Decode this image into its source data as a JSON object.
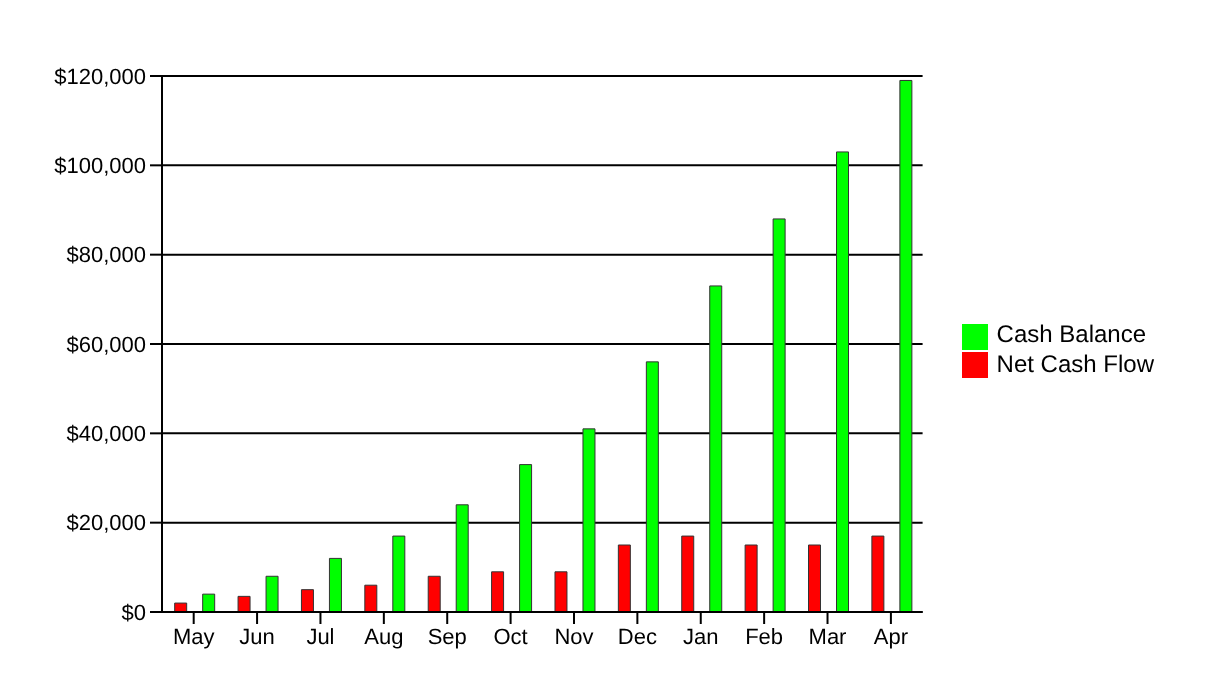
{
  "chart_data": {
    "type": "bar",
    "categories": [
      "May",
      "Jun",
      "Jul",
      "Aug",
      "Sep",
      "Oct",
      "Nov",
      "Dec",
      "Jan",
      "Feb",
      "Mar",
      "Apr"
    ],
    "series": [
      {
        "name": "Net Cash Flow",
        "color": "#ff0000",
        "values": [
          2000,
          3500,
          5000,
          6000,
          8000,
          9000,
          9000,
          15000,
          17000,
          15000,
          15000,
          17000
        ]
      },
      {
        "name": "Cash Balance",
        "color": "#00ff00",
        "values": [
          4000,
          8000,
          12000,
          17000,
          24000,
          33000,
          41000,
          56000,
          73000,
          88000,
          103000,
          119000
        ]
      }
    ],
    "ylim": [
      0,
      120000
    ],
    "yticks": [
      {
        "value": 0,
        "label": "$0"
      },
      {
        "value": 20000,
        "label": "$20,000"
      },
      {
        "value": 40000,
        "label": "$40,000"
      },
      {
        "value": 60000,
        "label": "$60,000"
      },
      {
        "value": 80000,
        "label": "$80,000"
      },
      {
        "value": 100000,
        "label": "$100,000"
      },
      {
        "value": 120000,
        "label": "$120,000"
      }
    ],
    "grid": "y",
    "legend": "right"
  }
}
